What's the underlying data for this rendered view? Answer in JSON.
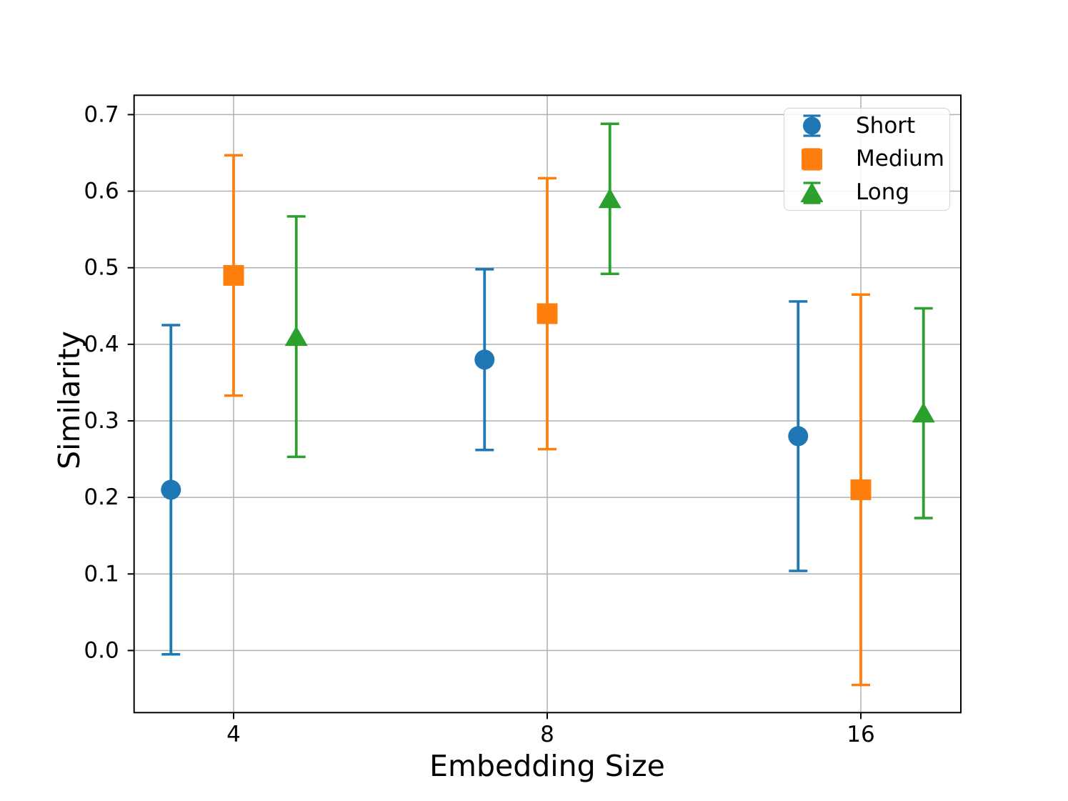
{
  "chart_data": {
    "type": "errorbar",
    "title": "",
    "xlabel": "Embedding Size",
    "ylabel": "Similarity",
    "x_categories": [
      "4",
      "8",
      "16"
    ],
    "x_values": [
      4,
      8,
      16
    ],
    "yticks": [
      "0.0",
      "0.1",
      "0.2",
      "0.3",
      "0.4",
      "0.5",
      "0.6",
      "0.7"
    ],
    "ylim": [
      -0.08,
      0.725
    ],
    "grid": true,
    "legend_position": "upper right",
    "colors": {
      "background": "#ffffff",
      "grid": "#b0b0b0",
      "axes": "#000000",
      "blue": "#1f77b4",
      "orange": "#ff7f0e",
      "green": "#2ca02c"
    },
    "series": [
      {
        "name": "Short",
        "marker": "circle",
        "color": "#1f77b4",
        "category_offset": -0.2,
        "values": [
          0.21,
          0.38,
          0.28
        ],
        "errors": [
          0.215,
          0.118,
          0.176
        ]
      },
      {
        "name": "Medium",
        "marker": "square",
        "color": "#ff7f0e",
        "category_offset": 0.0,
        "values": [
          0.49,
          0.44,
          0.21
        ],
        "errors": [
          0.157,
          0.177,
          0.255
        ]
      },
      {
        "name": "Long",
        "marker": "triangle",
        "color": "#2ca02c",
        "category_offset": 0.2,
        "values": [
          0.41,
          0.59,
          0.31
        ],
        "errors": [
          0.157,
          0.098,
          0.137
        ]
      }
    ]
  }
}
